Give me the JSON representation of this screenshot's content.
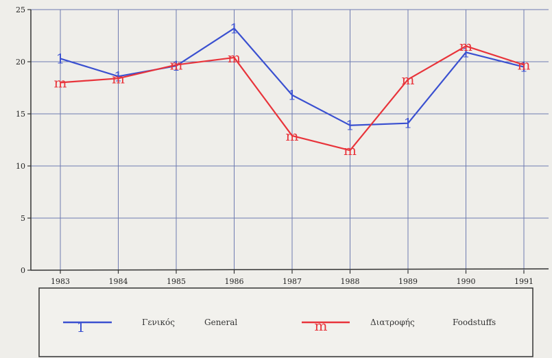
{
  "chart_data": {
    "type": "line",
    "x": [
      "1983",
      "1984",
      "1985",
      "1986",
      "1987",
      "1988",
      "1989",
      "1990",
      "1991"
    ],
    "ylim": [
      0,
      25
    ],
    "yticks": [
      "0",
      "5",
      "10",
      "15",
      "20",
      "25"
    ],
    "grid": true,
    "legend_position": "bottom",
    "series": [
      {
        "name_gr": "Γενικός",
        "name_en": "General",
        "marker": "1",
        "color": "#3a50d0",
        "values": [
          20.3,
          18.6,
          19.6,
          23.2,
          16.8,
          13.9,
          14.1,
          20.9,
          19.5
        ]
      },
      {
        "name_gr": "Διατροφής",
        "name_en": "Foodstuffs",
        "marker": "m",
        "color": "#e8333a",
        "values": [
          18.0,
          18.4,
          19.7,
          20.4,
          12.9,
          11.5,
          18.3,
          21.5,
          19.7
        ]
      }
    ]
  }
}
